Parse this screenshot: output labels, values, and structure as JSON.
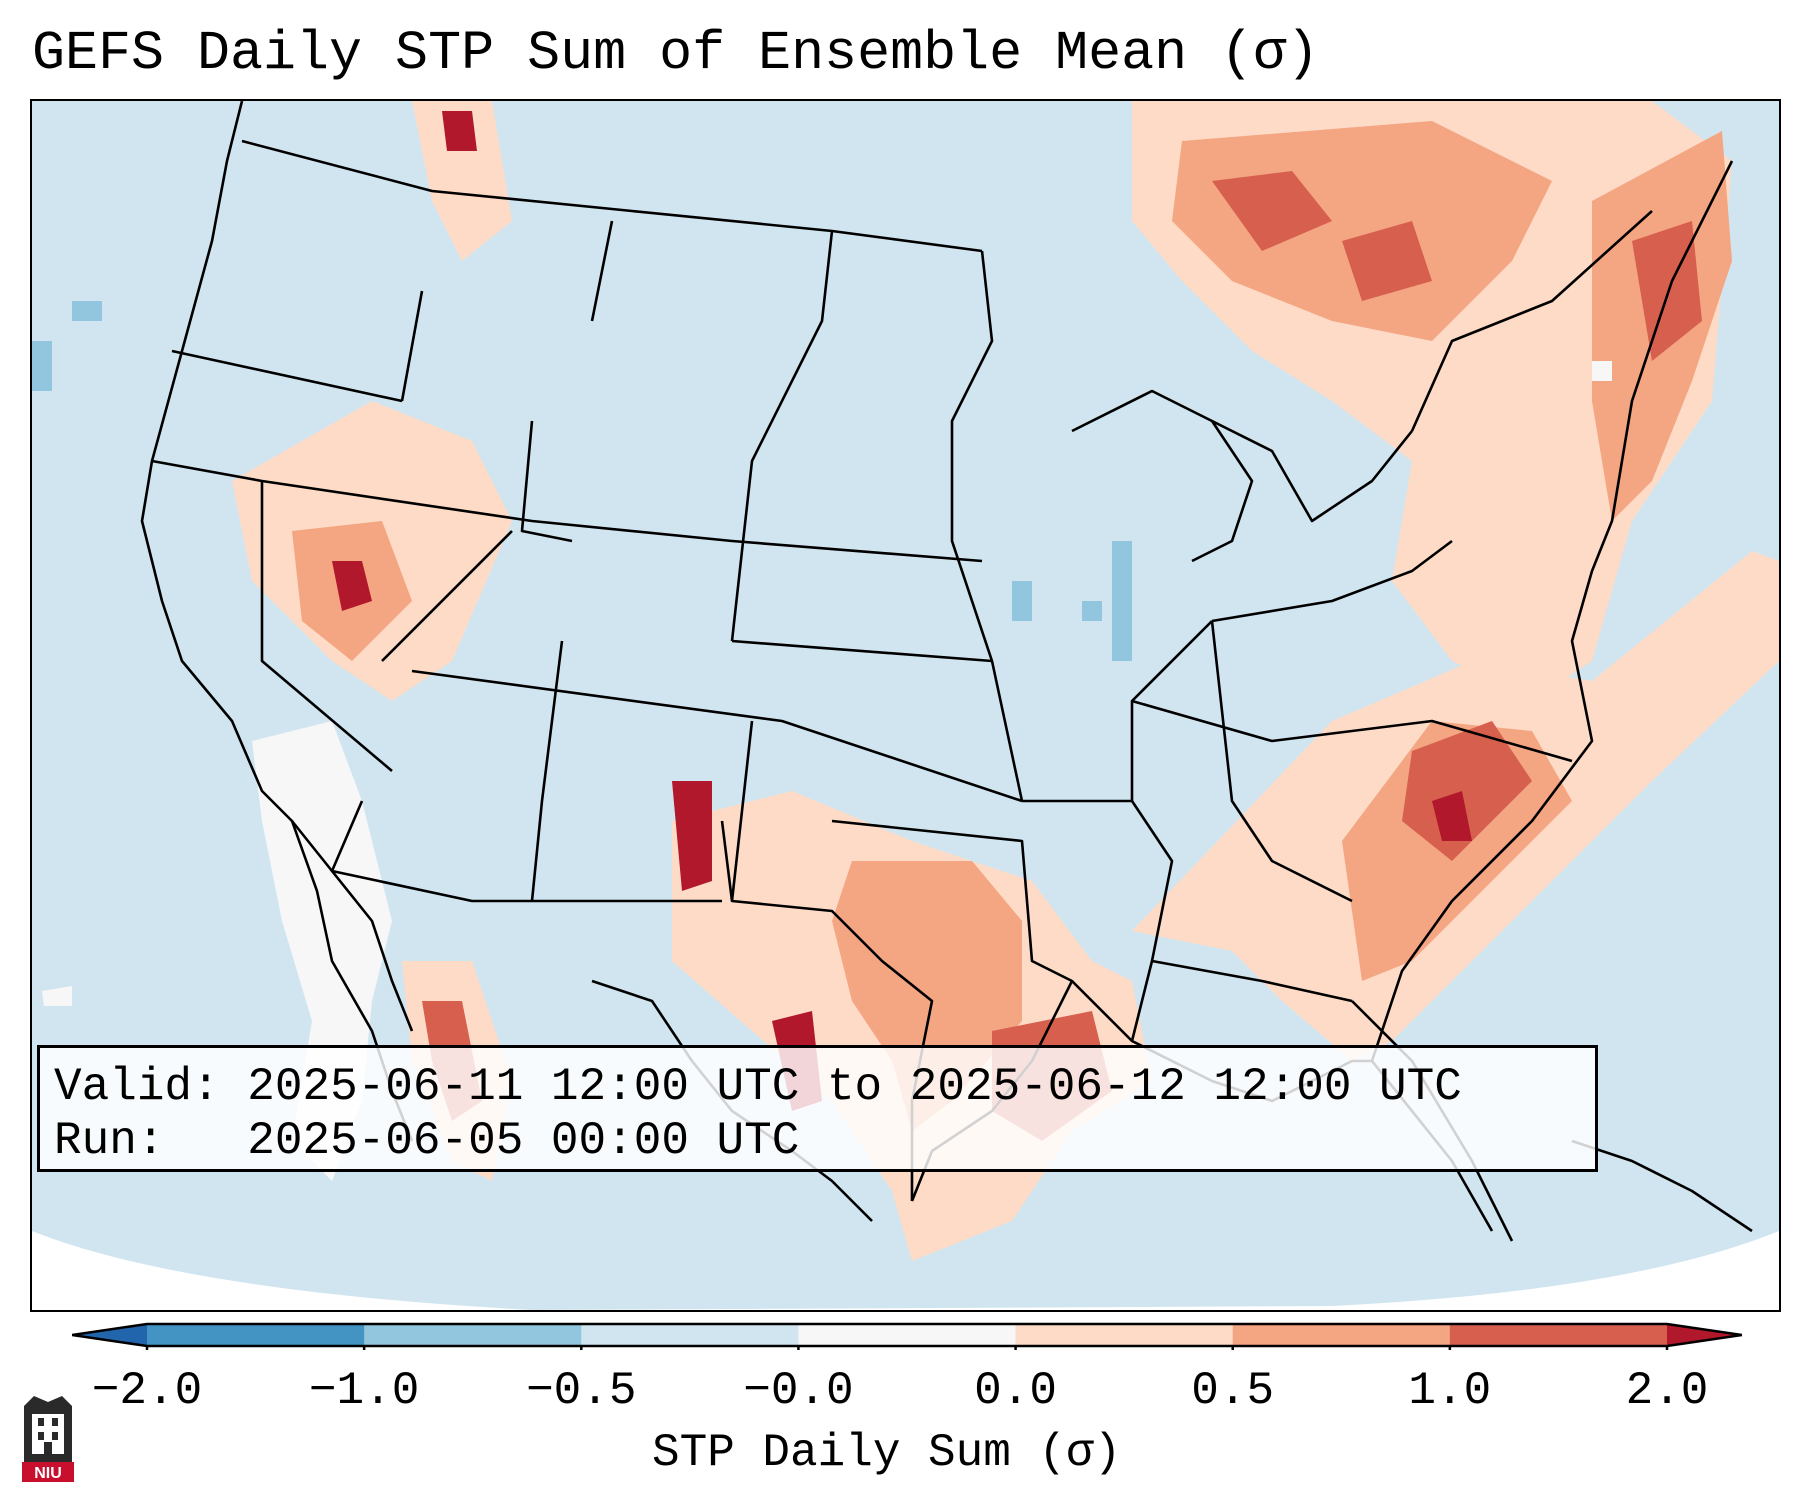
{
  "title": "GEFS Daily STP Sum of Ensemble Mean (σ)",
  "info": {
    "valid_label": "Valid:",
    "valid_value": "2025-06-11 12:00 UTC to 2025-06-12 12:00 UTC",
    "run_label": "Run:",
    "run_value": "2025-06-05 00:00 UTC"
  },
  "colorbar": {
    "label": "STP Daily Sum (σ)",
    "ticks": [
      "−2.0",
      "−1.0",
      "−0.5",
      "−0.0",
      "0.0",
      "0.5",
      "1.0",
      "2.0"
    ],
    "bins": [
      {
        "range": "<-2.0",
        "color": "#2166ac"
      },
      {
        "range": "-2.0 to -1.0",
        "color": "#4393c3"
      },
      {
        "range": "-1.0 to -0.5",
        "color": "#92c5de"
      },
      {
        "range": "-0.5 to -0.0",
        "color": "#d1e5f0"
      },
      {
        "range": "-0.0 to 0.0",
        "color": "#f7f7f7"
      },
      {
        "range": "0.0 to 0.5",
        "color": "#fddbc7"
      },
      {
        "range": "0.5 to 1.0",
        "color": "#f4a582"
      },
      {
        "range": "1.0 to 2.0",
        "color": "#d6604d"
      },
      {
        "range": ">2.0",
        "color": "#b2182b"
      }
    ]
  },
  "map": {
    "background_color": "#d1e5f0",
    "border_color": "#000000"
  },
  "logo": {
    "text": "NIU",
    "color": "#c8102e"
  }
}
